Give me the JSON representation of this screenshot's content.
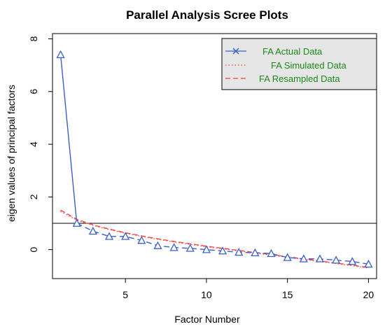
{
  "chart_data": {
    "type": "line",
    "title": "Parallel Analysis Scree Plots",
    "xlabel": "Factor Number",
    "ylabel": "eigen values of principal factors",
    "xlim": [
      0.5,
      20.5
    ],
    "ylim": [
      -1.1,
      8.2
    ],
    "x_ticks": [
      5,
      10,
      15,
      20
    ],
    "y_ticks": [
      0,
      2,
      4,
      6,
      8
    ],
    "reference_line_y": 1,
    "legend_position": "top-right",
    "series": [
      {
        "name": "FA  Actual Data",
        "color": "#3a5fcd",
        "line_style": "solid-then-dashed",
        "marker": "triangle",
        "x": [
          1,
          2,
          3,
          4,
          5,
          6,
          7,
          8,
          9,
          10,
          11,
          12,
          13,
          14,
          15,
          16,
          17,
          18,
          19,
          20
        ],
        "values": [
          7.4,
          1.0,
          0.7,
          0.5,
          0.5,
          0.35,
          0.15,
          0.08,
          0.05,
          0.0,
          -0.05,
          -0.1,
          -0.12,
          -0.15,
          -0.3,
          -0.35,
          -0.35,
          -0.4,
          -0.45,
          -0.55
        ]
      },
      {
        "name": "FA  Simulated Data",
        "color": "#ff3b3b",
        "line_style": "dotted",
        "x": [
          1,
          2,
          3,
          4,
          5,
          6,
          7,
          8,
          9,
          10,
          11,
          12,
          13,
          14,
          15,
          16,
          17,
          18,
          19,
          20
        ],
        "values": [
          1.45,
          1.12,
          0.92,
          0.76,
          0.62,
          0.5,
          0.39,
          0.29,
          0.2,
          0.11,
          0.03,
          -0.05,
          -0.13,
          -0.21,
          -0.29,
          -0.37,
          -0.45,
          -0.53,
          -0.61,
          -0.7
        ]
      },
      {
        "name": "FA  Resampled Data",
        "color": "#ff3b3b",
        "line_style": "dashed",
        "x": [
          1,
          2,
          3,
          4,
          5,
          6,
          7,
          8,
          9,
          10,
          11,
          12,
          13,
          14,
          15,
          16,
          17,
          18,
          19,
          20
        ],
        "values": [
          1.5,
          1.15,
          0.94,
          0.78,
          0.64,
          0.52,
          0.41,
          0.31,
          0.22,
          0.13,
          0.05,
          -0.03,
          -0.11,
          -0.19,
          -0.27,
          -0.35,
          -0.43,
          -0.51,
          -0.59,
          -0.68
        ]
      }
    ]
  }
}
